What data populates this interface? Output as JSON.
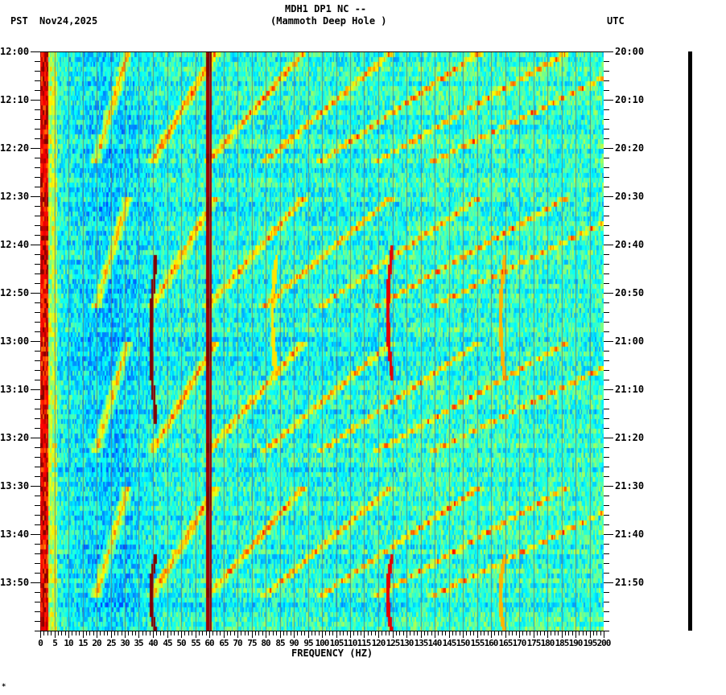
{
  "header": {
    "station_line": "MDH1 DP1 NC --",
    "station_name": "(Mammoth Deep Hole )",
    "left_timezone": "PST",
    "date": "Nov24,2025",
    "right_timezone": "UTC"
  },
  "footer": {
    "mark": "*"
  },
  "chart_data": {
    "type": "heatmap",
    "title": "MDH1 DP1 NC -- (Mammoth Deep Hole )",
    "subtitle": "Nov24,2025",
    "xlabel": "FREQUENCY (HZ)",
    "ylabel_left": "PST",
    "ylabel_right": "UTC",
    "xlim": [
      0,
      200
    ],
    "x_ticks": [
      0,
      5,
      10,
      15,
      20,
      25,
      30,
      35,
      40,
      45,
      50,
      55,
      60,
      65,
      70,
      75,
      80,
      85,
      90,
      95,
      100,
      105,
      110,
      115,
      120,
      125,
      130,
      135,
      140,
      145,
      150,
      155,
      160,
      165,
      170,
      175,
      180,
      185,
      190,
      195,
      200
    ],
    "y_ticks_left": [
      "12:00",
      "12:10",
      "12:20",
      "12:30",
      "12:40",
      "12:50",
      "13:00",
      "13:10",
      "13:20",
      "13:30",
      "13:40",
      "13:50"
    ],
    "y_ticks_right": [
      "20:00",
      "20:10",
      "20:20",
      "20:30",
      "20:40",
      "20:50",
      "21:00",
      "21:10",
      "21:20",
      "21:30",
      "21:40",
      "21:50"
    ],
    "time_range_minutes": 120,
    "colormap": "jet",
    "grid": true,
    "features": {
      "constant_line_hz": 60,
      "low_freq_energy_hz": [
        0,
        3
      ],
      "gliding_tone_period_minutes": 30,
      "gliding_tone_harmonic_spacing_hz": 20,
      "transient_lines_hz": [
        41,
        84,
        125,
        165
      ]
    },
    "colors": {
      "background": "#00c8f0",
      "low": "#1e78ff",
      "mid": "#c8ff50",
      "high": "#ff2800",
      "max": "#800000"
    }
  }
}
